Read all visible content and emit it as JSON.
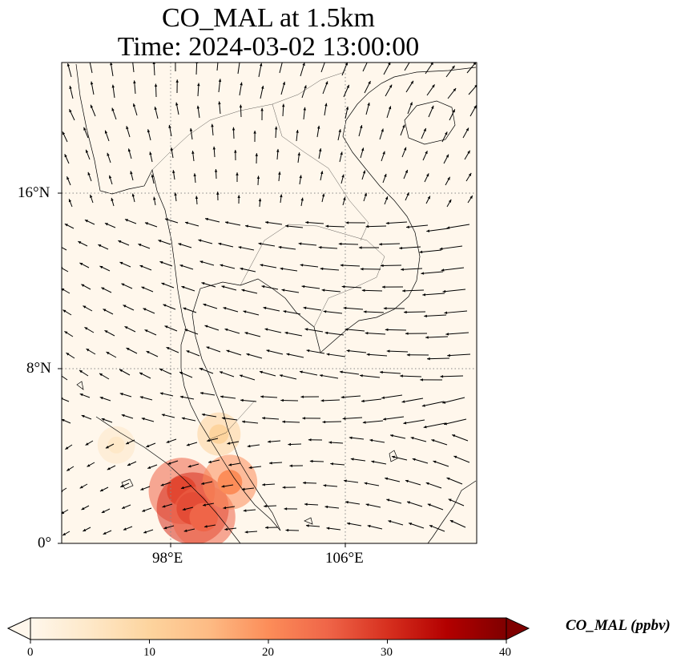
{
  "title": {
    "line1": "CO_MAL at 1.5km",
    "line2": "Time: 2024-03-02 13:00:00"
  },
  "map": {
    "lon_ticks": [
      "98°E",
      "106°E"
    ],
    "lat_ticks": [
      "16°N",
      "8°N",
      "0°"
    ],
    "lon_range": [
      93,
      112
    ],
    "lat_range": [
      0,
      22
    ],
    "gridlines": "dotted",
    "coastline_color": "#000000",
    "vector_color": "#000000"
  },
  "field": {
    "name": "CO_MAL",
    "hotspots": [
      {
        "lon": 98.5,
        "lat": 2.4,
        "value": 26
      },
      {
        "lon": 99.0,
        "lat": 1.6,
        "value": 30
      },
      {
        "lon": 99.5,
        "lat": 1.2,
        "value": 24
      },
      {
        "lon": 100.7,
        "lat": 2.8,
        "value": 18
      },
      {
        "lon": 100.2,
        "lat": 5.0,
        "value": 10
      },
      {
        "lon": 95.5,
        "lat": 4.5,
        "value": 6
      }
    ]
  },
  "colorbar": {
    "label": "CO_MAL (ppbv)",
    "ticks": [
      "0",
      "10",
      "20",
      "30",
      "40"
    ],
    "range": [
      0,
      40
    ],
    "extend": "both",
    "colormap": "OrRd",
    "colors": [
      "#fff7ec",
      "#fee8c8",
      "#fdd49e",
      "#fdbb84",
      "#fc8d59",
      "#ef6548",
      "#d7301f",
      "#b30000",
      "#7f0000"
    ]
  }
}
